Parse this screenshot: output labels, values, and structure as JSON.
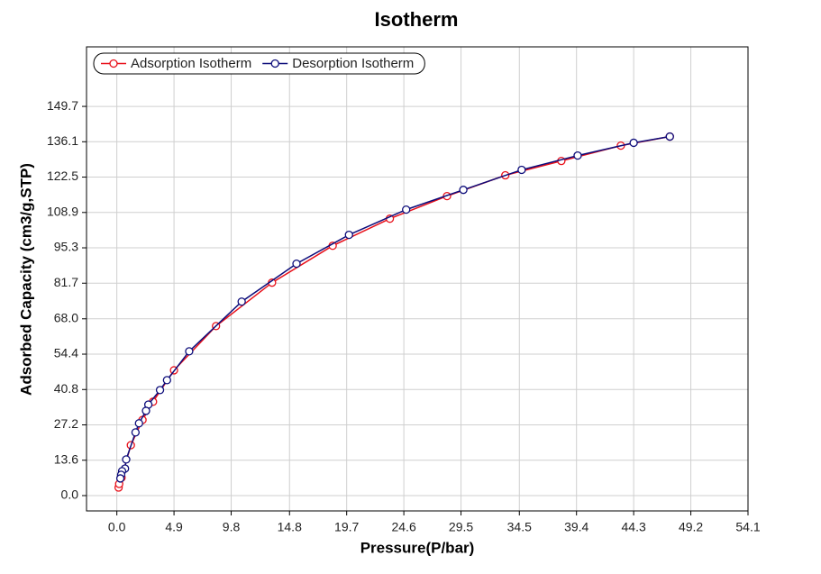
{
  "chart_data": {
    "type": "line",
    "title": "Isotherm",
    "x_label": "Pressure(P/bar)",
    "y_label": "Adsorbed Capacity (cm3/g,STP)",
    "xlim": [
      -2.6,
      54.1
    ],
    "ylim": [
      -5.9,
      172.6
    ],
    "xticks": [
      {
        "value": 0,
        "label": "0.0"
      },
      4.9,
      9.8,
      14.8,
      19.7,
      24.6,
      29.5,
      34.5,
      39.4,
      44.3,
      49.2,
      54.1
    ],
    "yticks": [
      {
        "value": 0,
        "label": "0.0"
      },
      13.6,
      27.2,
      40.8,
      54.4,
      {
        "value": 68,
        "label": "68.0"
      },
      81.7,
      95.3,
      108.9,
      122.5,
      136.1,
      149.7
    ],
    "grid": true,
    "legend": "top-left",
    "series": [
      {
        "name": "Adsorption Isotherm",
        "color": "#e8101a",
        "x": [
          0.15,
          0.2,
          0.4,
          1.2,
          2.2,
          3.1,
          4.9,
          8.5,
          13.3,
          18.5,
          23.4,
          28.3,
          33.3,
          38.1,
          43.2,
          47.4
        ],
        "values": [
          3.1,
          4.5,
          6.9,
          19.4,
          29.1,
          36.1,
          48.2,
          65.2,
          81.9,
          96.1,
          106.5,
          115.2,
          123.2,
          128.7,
          134.6,
          138.1
        ]
      },
      {
        "name": "Desorption Isotherm",
        "color": "#0c0c7a",
        "x": [
          47.4,
          44.3,
          39.5,
          34.7,
          29.7,
          24.8,
          19.9,
          15.4,
          10.7,
          6.2,
          4.3,
          3.7,
          2.7,
          2.5,
          1.9,
          1.6,
          0.8,
          0.7,
          0.45,
          0.37,
          0.3
        ],
        "values": [
          138.1,
          135.7,
          130.8,
          125.3,
          117.6,
          110.0,
          100.3,
          89.2,
          74.6,
          55.5,
          44.4,
          40.6,
          35.0,
          32.6,
          27.8,
          24.3,
          13.9,
          10.4,
          9.4,
          8.0,
          6.6
        ]
      }
    ]
  }
}
